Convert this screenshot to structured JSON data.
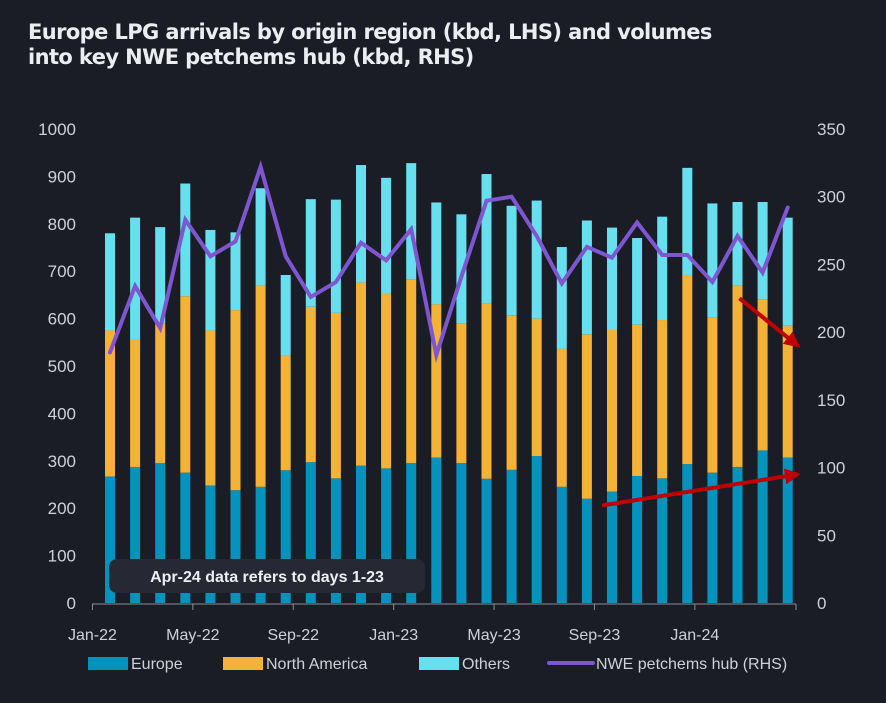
{
  "title": "Europe LPG arrivals by origin region (kbd, LHS) and volumes into key NWE petchems hub (kbd, RHS)",
  "title_lines": [
    "Europe LPG arrivals by origin region (kbd, LHS) and volumes",
    "into key NWE petchems hub (kbd, RHS)"
  ],
  "annotation": "Apr-24 data refers to days 1-23",
  "colors": {
    "europe": "#0593bd",
    "north_america": "#f4b236",
    "others": "#68dfee",
    "line": "#7f56d1",
    "arrow": "#c00000",
    "background": "#1b1d26"
  },
  "chart_data": {
    "type": "bar",
    "stacked": true,
    "title": "Europe LPG arrivals by origin region (kbd, LHS) and volumes into key NWE petchems hub (kbd, RHS)",
    "xlabel": "",
    "ylabel": "kbd",
    "ylim": [
      0,
      1000
    ],
    "y_ticks": [
      0,
      100,
      200,
      300,
      400,
      500,
      600,
      700,
      800,
      900,
      1000
    ],
    "y2lim": [
      0,
      350
    ],
    "y2_ticks": [
      0,
      50,
      100,
      150,
      200,
      250,
      300,
      350
    ],
    "grid": false,
    "legend_position": "bottom",
    "categories": [
      "Jan-22",
      "Feb-22",
      "Mar-22",
      "Apr-22",
      "May-22",
      "Jun-22",
      "Jul-22",
      "Aug-22",
      "Sep-22",
      "Oct-22",
      "Nov-22",
      "Dec-22",
      "Jan-23",
      "Feb-23",
      "Mar-23",
      "Apr-23",
      "May-23",
      "Jun-23",
      "Jul-23",
      "Aug-23",
      "Sep-23",
      "Oct-23",
      "Nov-23",
      "Dec-23",
      "Jan-24",
      "Feb-24",
      "Mar-24",
      "Apr-24"
    ],
    "x_tick_labels": [
      "Jan-22",
      "May-22",
      "Sep-22",
      "Jan-23",
      "May-23",
      "Sep-23",
      "Jan-24"
    ],
    "series": [
      {
        "name": "Europe",
        "type": "bar",
        "axis": "left",
        "values": [
          267,
          287,
          295,
          275,
          248,
          238,
          245,
          280,
          297,
          263,
          290,
          284,
          295,
          307,
          295,
          262,
          281,
          310,
          245,
          220,
          235,
          268,
          263,
          293,
          275,
          287,
          322,
          307
        ]
      },
      {
        "name": "North America",
        "type": "bar",
        "axis": "left",
        "values": [
          308,
          270,
          295,
          372,
          327,
          380,
          425,
          242,
          328,
          349,
          386,
          369,
          388,
          323,
          295,
          370,
          325,
          290,
          291,
          347,
          342,
          319,
          334,
          399,
          327,
          383,
          319,
          278
        ]
      },
      {
        "name": "Others",
        "type": "bar",
        "axis": "left",
        "values": [
          205,
          256,
          203,
          238,
          212,
          164,
          205,
          170,
          227,
          239,
          248,
          244,
          245,
          215,
          230,
          273,
          232,
          249,
          215,
          240,
          215,
          183,
          218,
          226,
          241,
          176,
          205,
          228
        ]
      },
      {
        "name": "NWE petchems hub (RHS)",
        "type": "line",
        "axis": "right",
        "values": [
          185,
          234,
          203,
          283,
          256,
          267,
          322,
          256,
          226,
          237,
          266,
          253,
          276,
          183,
          241,
          297,
          300,
          271,
          236,
          263,
          255,
          281,
          257,
          257,
          237,
          271,
          244,
          292
        ]
      }
    ],
    "annotations": [
      {
        "type": "arrow",
        "meaning": "Europe arrivals rising",
        "from": "Sep-23",
        "to": "Apr-24",
        "axis": "left",
        "from_value": 72,
        "to_value": 95
      },
      {
        "type": "arrow",
        "meaning": "North America arrivals falling",
        "from": "Feb-24",
        "to": "Apr-24",
        "axis": "right",
        "from_value": 225,
        "to_value": 190
      },
      {
        "type": "text",
        "text": "Apr-24 data refers to days 1-23"
      }
    ]
  },
  "legend": [
    {
      "label": "Europe",
      "kind": "bar"
    },
    {
      "label": "North America",
      "kind": "bar"
    },
    {
      "label": "Others",
      "kind": "bar"
    },
    {
      "label": "NWE petchems hub (RHS)",
      "kind": "line"
    }
  ]
}
